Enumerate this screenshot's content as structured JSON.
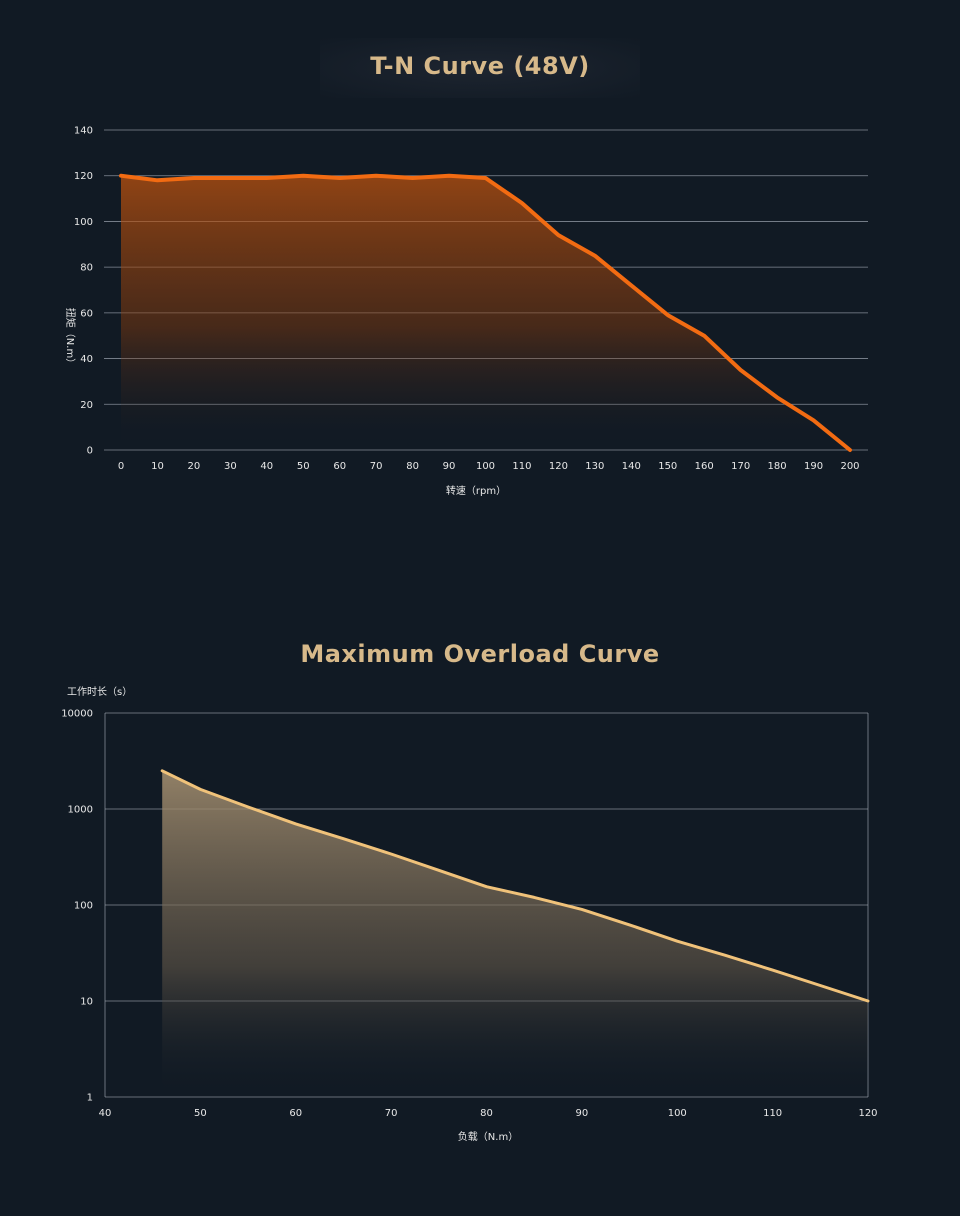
{
  "chart_data": [
    {
      "type": "area",
      "title": "T-N Curve (48V)",
      "xlabel": "转速（rpm）",
      "ylabel": "扭矩（N.m）",
      "x": [
        0,
        5,
        10,
        20,
        30,
        40,
        50,
        60,
        70,
        80,
        90,
        100,
        110,
        120,
        130,
        140,
        150,
        160,
        170,
        180,
        190,
        200
      ],
      "y": [
        120,
        119,
        118,
        119,
        119,
        119,
        120,
        119,
        120,
        119,
        120,
        119,
        108,
        94,
        85,
        72,
        59,
        50,
        35,
        23,
        13,
        0
      ],
      "xticks": [
        "0",
        "10",
        "20",
        "30",
        "40",
        "50",
        "60",
        "70",
        "80",
        "90",
        "100",
        "110",
        "120",
        "130",
        "140",
        "150",
        "160",
        "170",
        "180",
        "190",
        "200"
      ],
      "yticks": [
        "0",
        "20",
        "40",
        "60",
        "80",
        "100",
        "120",
        "140"
      ],
      "xlim": [
        0,
        200
      ],
      "ylim": [
        0,
        140
      ],
      "grid": "horizontal",
      "line_color": "#f26b12",
      "fill_color": "#c2540e"
    },
    {
      "type": "area",
      "title": "Maximum Overload Curve",
      "xlabel": "负载（N.m）",
      "ylabel": "工作时长（s）",
      "yscale": "log",
      "x": [
        46,
        50,
        55,
        60,
        65,
        70,
        75,
        80,
        85,
        90,
        95,
        100,
        105,
        110,
        115,
        120
      ],
      "y": [
        2500,
        1600,
        1050,
        700,
        490,
        340,
        230,
        155,
        120,
        90,
        62,
        42,
        30,
        21,
        14.5,
        10
      ],
      "xticks": [
        "40",
        "50",
        "60",
        "70",
        "80",
        "90",
        "100",
        "110",
        "120"
      ],
      "yticks": [
        "1",
        "10",
        "100",
        "1000",
        "10000"
      ],
      "xlim": [
        40,
        120
      ],
      "ylim": [
        1,
        10000
      ],
      "grid": "horizontal",
      "line_color": "#f0c27a",
      "fill_color": "#a89272"
    }
  ]
}
